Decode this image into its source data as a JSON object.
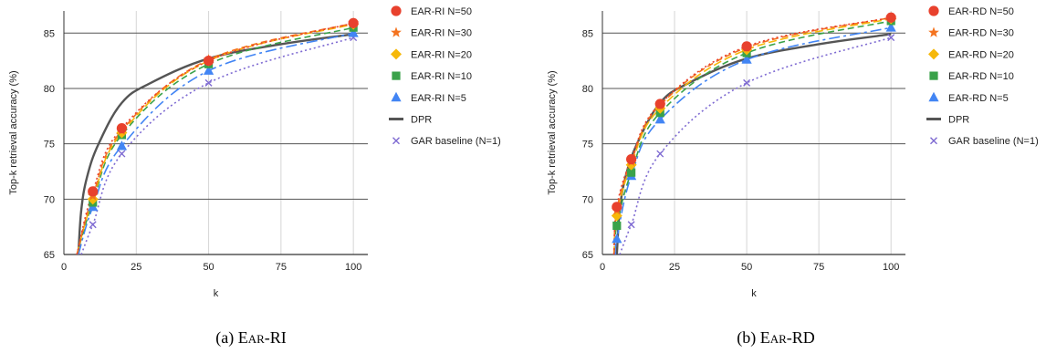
{
  "chart_data": [
    {
      "type": "line",
      "caption_prefix": "(a)",
      "caption_label": "Ear-RI",
      "xlabel": "k",
      "ylabel": "Top-k retrieval accuracy (%)",
      "xlim": [
        0,
        105
      ],
      "ylim": [
        65,
        87
      ],
      "xticks": [
        "0",
        "25",
        "50",
        "75",
        "100"
      ],
      "yticks": [
        "65",
        "70",
        "75",
        "80",
        "85"
      ],
      "grid": true,
      "legend_position": "right",
      "series": [
        {
          "name": "EAR-RI N=50",
          "color": "#e8412d",
          "marker": "circle",
          "dash": "2,3",
          "points": [
            [
              4.5,
              65
            ],
            [
              10,
              70.7
            ],
            [
              20,
              76.4
            ],
            [
              50,
              82.5
            ],
            [
              100,
              85.9
            ]
          ]
        },
        {
          "name": "EAR-RI N=30",
          "color": "#f4731f",
          "marker": "star",
          "dash": "7,4",
          "points": [
            [
              4.5,
              65
            ],
            [
              10,
              70.3
            ],
            [
              20,
              76.2
            ],
            [
              50,
              82.6
            ],
            [
              100,
              85.9
            ]
          ]
        },
        {
          "name": "EAR-RI N=20",
          "color": "#f6b80a",
          "marker": "diamond",
          "dash": "9,4",
          "points": [
            [
              4.5,
              65
            ],
            [
              10,
              70.0
            ],
            [
              20,
              76.0
            ],
            [
              50,
              82.5
            ],
            [
              100,
              85.8
            ]
          ]
        },
        {
          "name": "EAR-RI N=10",
          "color": "#3aa24a",
          "marker": "square",
          "dash": "7,4",
          "points": [
            [
              4.5,
              65
            ],
            [
              10,
              69.7
            ],
            [
              20,
              75.8
            ],
            [
              50,
              82.2
            ],
            [
              100,
              85.5
            ]
          ]
        },
        {
          "name": "EAR-RI N=5",
          "color": "#4285f4",
          "marker": "triangle",
          "dash": "12,4,3,4",
          "points": [
            [
              5,
              65
            ],
            [
              10,
              69.3
            ],
            [
              20,
              74.8
            ],
            [
              50,
              81.6
            ],
            [
              100,
              85.0
            ]
          ]
        },
        {
          "name": "DPR",
          "color": "#555555",
          "marker": "none",
          "dash": "",
          "points": [
            [
              5,
              65
            ],
            [
              6,
              69
            ],
            [
              8,
              72
            ],
            [
              12,
              75
            ],
            [
              20,
              78.7
            ],
            [
              30,
              80.5
            ],
            [
              50,
              82.7
            ],
            [
              75,
              84.0
            ],
            [
              100,
              84.9
            ]
          ]
        },
        {
          "name": "GAR baseline (N=1)",
          "color": "#7e6ad2",
          "marker": "cross",
          "dash": "2,3",
          "points": [
            [
              6,
              65
            ],
            [
              10,
              67.7
            ],
            [
              20,
              74.1
            ],
            [
              50,
              80.5
            ],
            [
              100,
              84.6
            ]
          ]
        }
      ]
    },
    {
      "type": "line",
      "caption_prefix": "(b)",
      "caption_label": "Ear-RD",
      "xlabel": "k",
      "ylabel": "Top-k retrieval accuracy (%)",
      "xlim": [
        0,
        105
      ],
      "ylim": [
        65,
        87
      ],
      "xticks": [
        "0",
        "25",
        "50",
        "75",
        "100"
      ],
      "yticks": [
        "65",
        "70",
        "75",
        "80",
        "85"
      ],
      "grid": true,
      "legend_position": "right",
      "series": [
        {
          "name": "EAR-RD N=50",
          "color": "#e8412d",
          "marker": "circle",
          "dash": "2,3",
          "points": [
            [
              4,
              65
            ],
            [
              5,
              69.3
            ],
            [
              10,
              73.6
            ],
            [
              20,
              78.6
            ],
            [
              50,
              83.8
            ],
            [
              100,
              86.4
            ]
          ]
        },
        {
          "name": "EAR-RD N=30",
          "color": "#f4731f",
          "marker": "star",
          "dash": "7,4",
          "points": [
            [
              4,
              65
            ],
            [
              5,
              69.0
            ],
            [
              10,
              73.4
            ],
            [
              20,
              78.5
            ],
            [
              50,
              83.7
            ],
            [
              100,
              86.4
            ]
          ]
        },
        {
          "name": "EAR-RD N=20",
          "color": "#f6b80a",
          "marker": "diamond",
          "dash": "9,4",
          "points": [
            [
              4,
              65
            ],
            [
              5,
              68.5
            ],
            [
              10,
              73.1
            ],
            [
              20,
              78.2
            ],
            [
              50,
              83.5
            ],
            [
              100,
              86.3
            ]
          ]
        },
        {
          "name": "EAR-RD N=10",
          "color": "#3aa24a",
          "marker": "square",
          "dash": "7,4",
          "points": [
            [
              4,
              65
            ],
            [
              5,
              67.6
            ],
            [
              10,
              72.4
            ],
            [
              20,
              77.8
            ],
            [
              50,
              83.2
            ],
            [
              100,
              86.1
            ]
          ]
        },
        {
          "name": "EAR-RD N=5",
          "color": "#4285f4",
          "marker": "triangle",
          "dash": "12,4,3,4",
          "points": [
            [
              4.5,
              65
            ],
            [
              5,
              66.4
            ],
            [
              10,
              72.1
            ],
            [
              20,
              77.2
            ],
            [
              50,
              82.6
            ],
            [
              100,
              85.5
            ]
          ]
        },
        {
          "name": "DPR",
          "color": "#555555",
          "marker": "none",
          "dash": "",
          "points": [
            [
              5,
              65
            ],
            [
              6,
              69
            ],
            [
              8,
              72
            ],
            [
              12,
              75
            ],
            [
              20,
              78.7
            ],
            [
              30,
              80.5
            ],
            [
              50,
              82.7
            ],
            [
              75,
              84.0
            ],
            [
              100,
              84.9
            ]
          ]
        },
        {
          "name": "GAR baseline (N=1)",
          "color": "#7e6ad2",
          "marker": "cross",
          "dash": "2,3",
          "points": [
            [
              6,
              65
            ],
            [
              10,
              67.7
            ],
            [
              20,
              74.1
            ],
            [
              50,
              80.5
            ],
            [
              100,
              84.6
            ]
          ]
        }
      ]
    }
  ]
}
